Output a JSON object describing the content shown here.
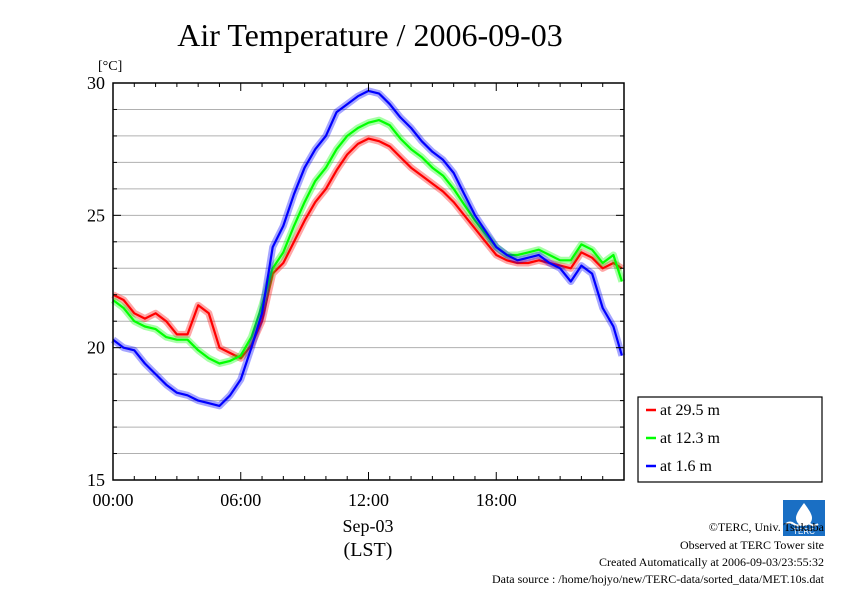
{
  "chart_data": {
    "type": "line",
    "title": "Air Temperature / 2006-09-03",
    "ylabel": "[°C]",
    "xlabel_date": "Sep-03",
    "xlabel_tz": "(LST)",
    "ylim": [
      15,
      30
    ],
    "yticks": [
      "15",
      "20",
      "25",
      "30"
    ],
    "xlim_hours": [
      0,
      24
    ],
    "xticks": [
      {
        "label": "00:00",
        "hour": 0
      },
      {
        "label": "06:00",
        "hour": 6
      },
      {
        "label": "12:00",
        "hour": 12
      },
      {
        "label": "18:00",
        "hour": 18
      }
    ],
    "grid": true,
    "legend_position": "bottom-right-outside",
    "x": [
      0,
      0.5,
      1,
      1.5,
      2,
      2.5,
      3,
      3.5,
      4,
      4.5,
      5,
      5.5,
      6,
      6.5,
      7,
      7.5,
      8,
      8.5,
      9,
      9.5,
      10,
      10.5,
      11,
      11.5,
      12,
      12.5,
      13,
      13.5,
      14,
      14.5,
      15,
      15.5,
      16,
      16.5,
      17,
      17.5,
      18,
      18.5,
      19,
      19.5,
      20,
      20.5,
      21,
      21.5,
      22,
      22.5,
      23,
      23.5,
      23.9
    ],
    "series": [
      {
        "name": "at 29.5 m",
        "color": "#ff0000",
        "values": [
          22.0,
          21.8,
          21.3,
          21.1,
          21.3,
          21.0,
          20.5,
          20.5,
          21.6,
          21.3,
          20.0,
          19.8,
          19.6,
          20.1,
          21.0,
          22.8,
          23.2,
          24.0,
          24.8,
          25.5,
          26.0,
          26.7,
          27.3,
          27.7,
          27.9,
          27.8,
          27.6,
          27.2,
          26.8,
          26.5,
          26.2,
          25.9,
          25.5,
          25.0,
          24.5,
          24.0,
          23.5,
          23.3,
          23.2,
          23.2,
          23.3,
          23.2,
          23.1,
          23.0,
          23.6,
          23.4,
          23.0,
          23.2,
          23.0
        ]
      },
      {
        "name": "at 12.3 m",
        "color": "#00ff00",
        "values": [
          21.8,
          21.5,
          21.0,
          20.8,
          20.7,
          20.4,
          20.3,
          20.3,
          19.9,
          19.6,
          19.4,
          19.5,
          19.7,
          20.4,
          21.6,
          23.0,
          23.6,
          24.6,
          25.5,
          26.3,
          26.8,
          27.5,
          28.0,
          28.3,
          28.5,
          28.6,
          28.4,
          27.9,
          27.5,
          27.2,
          26.8,
          26.5,
          26.0,
          25.4,
          24.8,
          24.3,
          23.8,
          23.5,
          23.5,
          23.6,
          23.7,
          23.5,
          23.3,
          23.3,
          23.9,
          23.7,
          23.2,
          23.5,
          22.5
        ]
      },
      {
        "name": "at 1.6 m",
        "color": "#0000ff",
        "values": [
          20.3,
          20.0,
          19.9,
          19.4,
          19.0,
          18.6,
          18.3,
          18.2,
          18.0,
          17.9,
          17.8,
          18.2,
          18.8,
          20.0,
          21.3,
          23.8,
          24.6,
          25.8,
          26.8,
          27.5,
          28.0,
          28.9,
          29.2,
          29.5,
          29.7,
          29.6,
          29.2,
          28.7,
          28.3,
          27.8,
          27.4,
          27.1,
          26.6,
          25.8,
          25.0,
          24.4,
          23.8,
          23.5,
          23.3,
          23.4,
          23.5,
          23.2,
          23.0,
          22.5,
          23.1,
          22.8,
          21.5,
          20.8,
          19.7
        ]
      }
    ]
  },
  "footer": {
    "copyright": "©TERC, Univ. Tsukuba",
    "observed": "Observed at TERC Tower site",
    "created": "Created Automatically at 2006-09-03/23:55:32",
    "source": "Data source : /home/hojyo/new/TERC-data/sorted_data/MET.10s.dat"
  },
  "logo_icon": "terc-logo-icon",
  "logo_text": "TERC"
}
